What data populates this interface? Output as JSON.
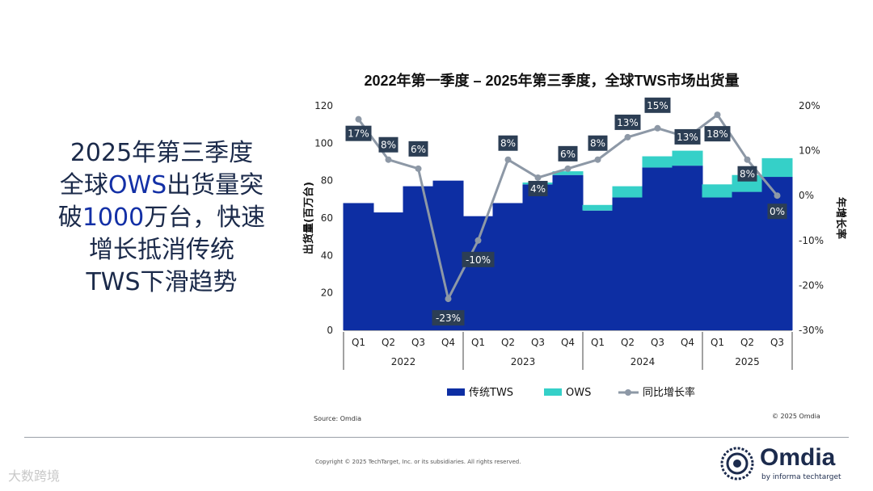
{
  "headline": {
    "line1": "2025年第三季度",
    "line2_pre": "全球",
    "line2_hl": "OWS",
    "line2_post": "出货量突",
    "line3_pre": "破",
    "line3_hl": "1000",
    "line3_post": "万台，快速",
    "line4": "增长抵消传统",
    "line5": "TWS下滑趋势"
  },
  "chart_data": {
    "type": "bar",
    "title": "2022年第一季度 – 2025年第三季度，全球TWS市场出货量",
    "ylabel": "出货量(百万台)",
    "y2label": "年增长率",
    "ylim": [
      0,
      120
    ],
    "yticks": [
      "0",
      "20",
      "40",
      "60",
      "80",
      "100",
      "120"
    ],
    "y2lim": [
      -30,
      20
    ],
    "y2ticks": [
      "-30%",
      "-20%",
      "-10%",
      "0%",
      "10%",
      "20%"
    ],
    "categories": [
      "Q1",
      "Q2",
      "Q3",
      "Q4",
      "Q1",
      "Q2",
      "Q3",
      "Q4",
      "Q1",
      "Q2",
      "Q3",
      "Q4",
      "Q1",
      "Q2",
      "Q3"
    ],
    "years": [
      {
        "label": "2022",
        "count": 4
      },
      {
        "label": "2023",
        "count": 4
      },
      {
        "label": "2024",
        "count": 4
      },
      {
        "label": "2025",
        "count": 3
      }
    ],
    "series": [
      {
        "name": "传统TWS",
        "kind": "bar",
        "color": "#0d2ea3",
        "values": [
          68,
          63,
          77,
          80,
          61,
          68,
          78,
          83,
          64,
          71,
          87,
          88,
          71,
          74,
          82
        ]
      },
      {
        "name": "OWS",
        "kind": "bar",
        "color": "#35d0c8",
        "values": [
          0,
          0,
          0,
          0,
          0,
          0,
          1,
          2,
          3,
          6,
          6,
          8,
          7,
          9,
          10
        ]
      },
      {
        "name": "同比增长率",
        "kind": "line",
        "color": "#8d98a6",
        "values": [
          17,
          8,
          6,
          -23,
          -10,
          8,
          4,
          6,
          8,
          13,
          15,
          13,
          18,
          8,
          0
        ],
        "labels": [
          "17%",
          "8%",
          "6%",
          "-23%",
          "-10%",
          "8%",
          "4%",
          "6%",
          "8%",
          "13%",
          "15%",
          "13%",
          "18%",
          "8%",
          "0%"
        ]
      }
    ],
    "legend": [
      "传统TWS",
      "OWS",
      "同比增长率"
    ],
    "source": "Source: Omdia",
    "copyright": "© 2025 Omdia"
  },
  "footer": {
    "copyright": "Copyright © 2025 TechTarget, Inc. or its subsidiaries. All rights reserved.",
    "logo_word": "Omdia",
    "logo_sub": "by informa techtarget",
    "watermark": "大数跨境"
  }
}
